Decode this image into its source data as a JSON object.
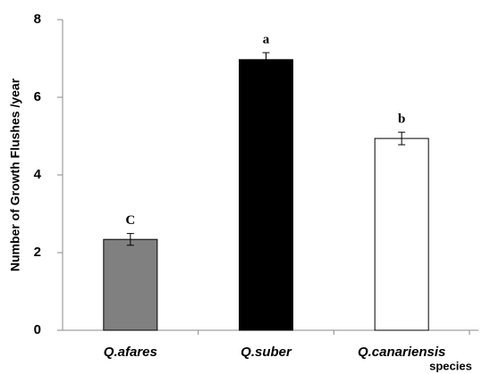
{
  "chart_data": {
    "type": "bar",
    "ylabel": "Number of Growth Flushes /year",
    "xlabel": "species",
    "categories": [
      "Q.afares",
      "Q.suber",
      "Q.canariensis"
    ],
    "values": [
      2.34,
      6.97,
      4.94
    ],
    "errors": [
      0.15,
      0.18,
      0.16
    ],
    "colors": [
      "#808080",
      "#000000",
      "#ffffff"
    ],
    "letters": [
      "C",
      "a",
      "b"
    ],
    "ylim": [
      0,
      8
    ],
    "yticks": [
      0,
      2,
      4,
      6,
      8
    ]
  }
}
